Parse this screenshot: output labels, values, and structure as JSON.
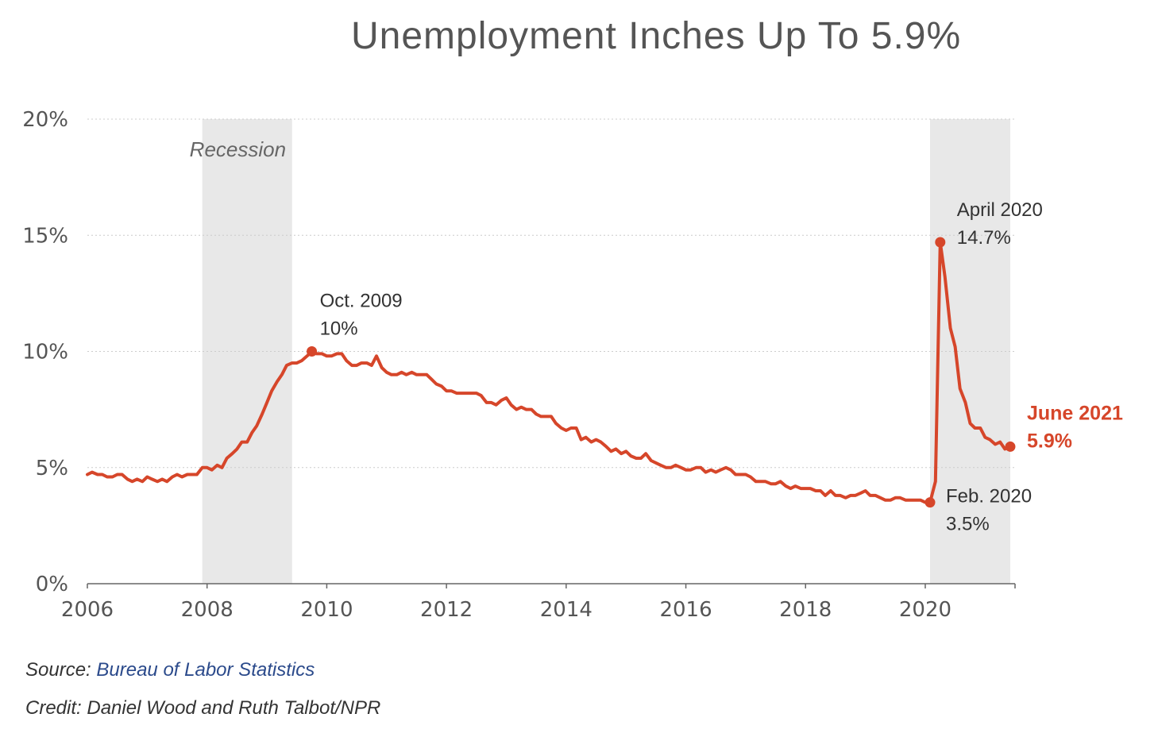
{
  "title": "Unemployment Inches Up To 5.9%",
  "source": {
    "label": "Source:",
    "link": "Bureau of Labor Statistics"
  },
  "credit": "Credit: Daniel Wood and Ruth Talbot/NPR",
  "colors": {
    "line": "#d6462a",
    "recession": "#e8e8e8",
    "highlight": "#d6462a",
    "grid": "#cccccc"
  },
  "chart_data": {
    "type": "line",
    "title": "Unemployment Inches Up To 5.9%",
    "xlabel": "",
    "ylabel": "",
    "xlim": [
      2006,
      2021.5
    ],
    "ylim": [
      0,
      20
    ],
    "x_ticks": [
      2006,
      2008,
      2010,
      2012,
      2014,
      2016,
      2018,
      2020
    ],
    "x_tick_labels": [
      "2006",
      "2008",
      "2010",
      "2012",
      "2014",
      "2016",
      "2018",
      "2020"
    ],
    "y_ticks": [
      0,
      5,
      10,
      15,
      20
    ],
    "y_tick_labels": [
      "0%",
      "5%",
      "10%",
      "15%",
      "20%"
    ],
    "grid": "horizontal dotted",
    "recessions": [
      {
        "start": 2007.92,
        "end": 2009.42,
        "label": "Recession"
      },
      {
        "start": 2020.08,
        "end": 2021.42,
        "label": ""
      }
    ],
    "series": [
      {
        "x": [
          2006.0,
          2006.08,
          2006.17,
          2006.25,
          2006.33,
          2006.42,
          2006.5,
          2006.58,
          2006.67,
          2006.75,
          2006.83,
          2006.92,
          2007.0,
          2007.08,
          2007.17,
          2007.25,
          2007.33,
          2007.42,
          2007.5,
          2007.58,
          2007.67,
          2007.75,
          2007.83,
          2007.92,
          2008.0,
          2008.08,
          2008.17,
          2008.25,
          2008.33,
          2008.42,
          2008.5,
          2008.58,
          2008.67,
          2008.75,
          2008.83,
          2008.92,
          2009.0,
          2009.08,
          2009.17,
          2009.25,
          2009.33,
          2009.42,
          2009.5,
          2009.58,
          2009.67,
          2009.75,
          2009.83,
          2009.92,
          2010.0,
          2010.08,
          2010.17,
          2010.25,
          2010.33,
          2010.42,
          2010.5,
          2010.58,
          2010.67,
          2010.75,
          2010.83,
          2010.92,
          2011.0,
          2011.08,
          2011.17,
          2011.25,
          2011.33,
          2011.42,
          2011.5,
          2011.58,
          2011.67,
          2011.75,
          2011.83,
          2011.92,
          2012.0,
          2012.08,
          2012.17,
          2012.25,
          2012.33,
          2012.42,
          2012.5,
          2012.58,
          2012.67,
          2012.75,
          2012.83,
          2012.92,
          2013.0,
          2013.08,
          2013.17,
          2013.25,
          2013.33,
          2013.42,
          2013.5,
          2013.58,
          2013.67,
          2013.75,
          2013.83,
          2013.92,
          2014.0,
          2014.08,
          2014.17,
          2014.25,
          2014.33,
          2014.42,
          2014.5,
          2014.58,
          2014.67,
          2014.75,
          2014.83,
          2014.92,
          2015.0,
          2015.08,
          2015.17,
          2015.25,
          2015.33,
          2015.42,
          2015.5,
          2015.58,
          2015.67,
          2015.75,
          2015.83,
          2015.92,
          2016.0,
          2016.08,
          2016.17,
          2016.25,
          2016.33,
          2016.42,
          2016.5,
          2016.58,
          2016.67,
          2016.75,
          2016.83,
          2016.92,
          2017.0,
          2017.08,
          2017.17,
          2017.25,
          2017.33,
          2017.42,
          2017.5,
          2017.58,
          2017.67,
          2017.75,
          2017.83,
          2017.92,
          2018.0,
          2018.08,
          2018.17,
          2018.25,
          2018.33,
          2018.42,
          2018.5,
          2018.58,
          2018.67,
          2018.75,
          2018.83,
          2018.92,
          2019.0,
          2019.08,
          2019.17,
          2019.25,
          2019.33,
          2019.42,
          2019.5,
          2019.58,
          2019.67,
          2019.75,
          2019.83,
          2019.92,
          2020.0,
          2020.08,
          2020.17,
          2020.25,
          2020.33,
          2020.42,
          2020.5,
          2020.58,
          2020.67,
          2020.75,
          2020.83,
          2020.92,
          2021.0,
          2021.08,
          2021.17,
          2021.25,
          2021.33,
          2021.42
        ],
        "y": [
          4.7,
          4.8,
          4.7,
          4.7,
          4.6,
          4.6,
          4.7,
          4.7,
          4.5,
          4.4,
          4.5,
          4.4,
          4.6,
          4.5,
          4.4,
          4.5,
          4.4,
          4.6,
          4.7,
          4.6,
          4.7,
          4.7,
          4.7,
          5.0,
          5.0,
          4.9,
          5.1,
          5.0,
          5.4,
          5.6,
          5.8,
          6.1,
          6.1,
          6.5,
          6.8,
          7.3,
          7.8,
          8.3,
          8.7,
          9.0,
          9.4,
          9.5,
          9.5,
          9.6,
          9.8,
          10.0,
          9.9,
          9.9,
          9.8,
          9.8,
          9.9,
          9.9,
          9.6,
          9.4,
          9.4,
          9.5,
          9.5,
          9.4,
          9.8,
          9.3,
          9.1,
          9.0,
          9.0,
          9.1,
          9.0,
          9.1,
          9.0,
          9.0,
          9.0,
          8.8,
          8.6,
          8.5,
          8.3,
          8.3,
          8.2,
          8.2,
          8.2,
          8.2,
          8.2,
          8.1,
          7.8,
          7.8,
          7.7,
          7.9,
          8.0,
          7.7,
          7.5,
          7.6,
          7.5,
          7.5,
          7.3,
          7.2,
          7.2,
          7.2,
          6.9,
          6.7,
          6.6,
          6.7,
          6.7,
          6.2,
          6.3,
          6.1,
          6.2,
          6.1,
          5.9,
          5.7,
          5.8,
          5.6,
          5.7,
          5.5,
          5.4,
          5.4,
          5.6,
          5.3,
          5.2,
          5.1,
          5.0,
          5.0,
          5.1,
          5.0,
          4.9,
          4.9,
          5.0,
          5.0,
          4.8,
          4.9,
          4.8,
          4.9,
          5.0,
          4.9,
          4.7,
          4.7,
          4.7,
          4.6,
          4.4,
          4.4,
          4.4,
          4.3,
          4.3,
          4.4,
          4.2,
          4.1,
          4.2,
          4.1,
          4.1,
          4.1,
          4.0,
          4.0,
          3.8,
          4.0,
          3.8,
          3.8,
          3.7,
          3.8,
          3.8,
          3.9,
          4.0,
          3.8,
          3.8,
          3.7,
          3.6,
          3.6,
          3.7,
          3.7,
          3.6,
          3.6,
          3.6,
          3.6,
          3.5,
          3.5,
          4.4,
          14.7,
          13.2,
          11.0,
          10.2,
          8.4,
          7.8,
          6.9,
          6.7,
          6.7,
          6.3,
          6.2,
          6.0,
          6.1,
          5.8,
          5.9
        ]
      }
    ],
    "annotations": [
      {
        "id": "peak-2009",
        "x": 2009.75,
        "y": 10.0,
        "lines": [
          "Oct. 2009",
          "10%"
        ],
        "highlight": false
      },
      {
        "id": "low-2020",
        "x": 2020.08,
        "y": 3.5,
        "lines": [
          "Feb. 2020",
          "3.5%"
        ],
        "highlight": false
      },
      {
        "id": "peak-2020",
        "x": 2020.25,
        "y": 14.7,
        "lines": [
          "April 2020",
          "14.7%"
        ],
        "highlight": false
      },
      {
        "id": "latest",
        "x": 2021.42,
        "y": 5.9,
        "lines": [
          "June 2021",
          "5.9%"
        ],
        "highlight": true
      }
    ]
  }
}
